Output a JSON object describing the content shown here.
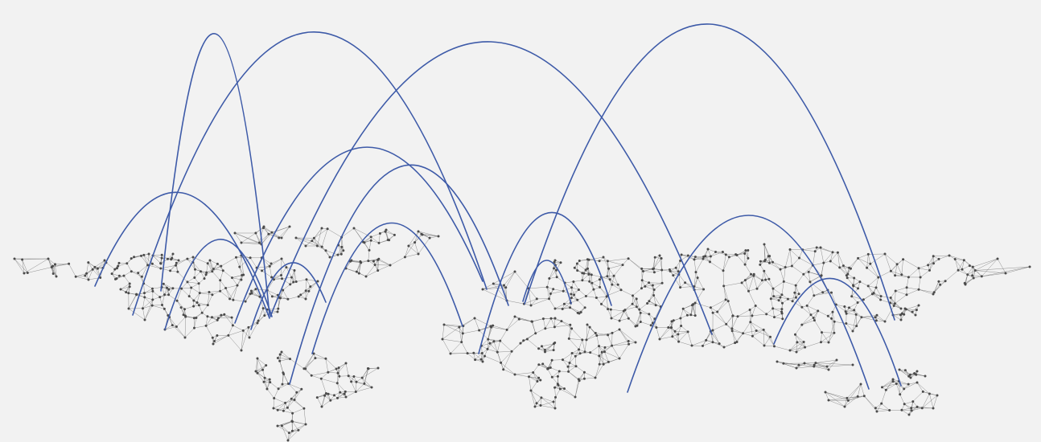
{
  "map": {
    "type": "flow-map",
    "land_style": "triangulated-mesh",
    "background_color": "#f2f2f2",
    "mesh_color": "#6e6e6e",
    "node_color": "#4a4a4a",
    "arc_color": "#3d5aa8",
    "regions": [
      "north-america",
      "greenland",
      "iceland",
      "south-america",
      "europe",
      "africa",
      "asia",
      "australia",
      "japan",
      "indonesia",
      "new-zealand"
    ],
    "arc_count": 15
  }
}
